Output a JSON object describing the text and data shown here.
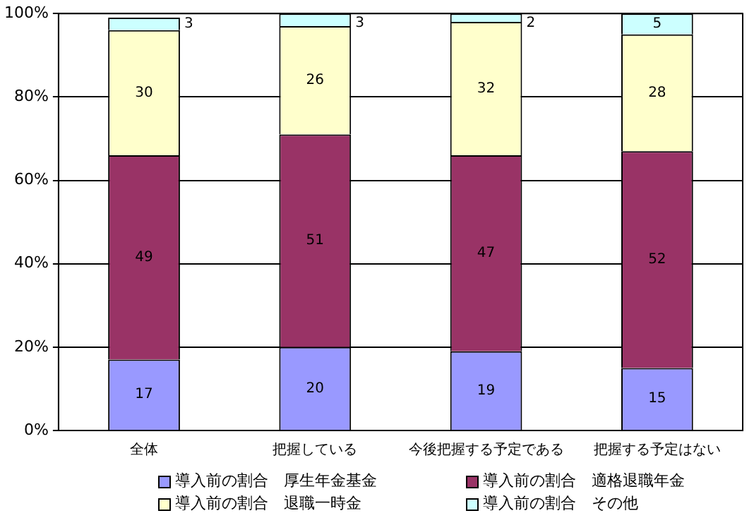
{
  "chart_data": {
    "type": "bar",
    "stacked": true,
    "categories": [
      "全体",
      "把握している",
      "今後把握する予定である",
      "把握する予定はない"
    ],
    "series": [
      {
        "name": "導入前の割合　厚生年金基金",
        "color": "#9999ff",
        "values": [
          17,
          20,
          19,
          15
        ]
      },
      {
        "name": "導入前の割合　適格退職年金",
        "color": "#993366",
        "values": [
          49,
          51,
          47,
          52
        ]
      },
      {
        "name": "導入前の割合　退職一時金",
        "color": "#ffffcc",
        "values": [
          30,
          26,
          32,
          28
        ]
      },
      {
        "name": "導入前の割合　その他",
        "color": "#ccffff",
        "values": [
          3,
          3,
          2,
          5
        ]
      }
    ],
    "ylim": [
      0,
      100
    ],
    "yticks": [
      {
        "value": 0,
        "label": "0%"
      },
      {
        "value": 20,
        "label": "20%"
      },
      {
        "value": 40,
        "label": "40%"
      },
      {
        "value": 60,
        "label": "60%"
      },
      {
        "value": 80,
        "label": "80%"
      },
      {
        "value": 100,
        "label": "100%"
      }
    ],
    "grid": "y",
    "legend": "bottom",
    "data_labels": true
  }
}
